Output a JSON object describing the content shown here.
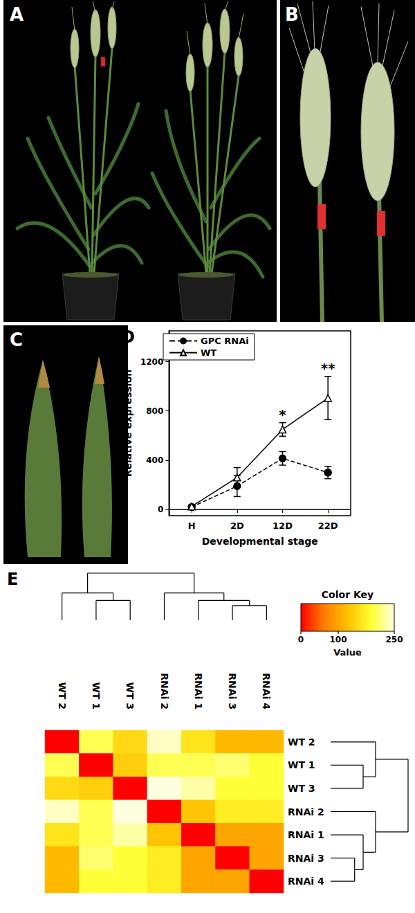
{
  "photos": [
    {
      "label": "A"
    },
    {
      "label": "B"
    },
    {
      "label": "C"
    }
  ],
  "chart_data": [
    {
      "type": "line",
      "title": "D",
      "categories": [
        "H",
        "2D",
        "12D",
        "22D"
      ],
      "x_label": "Developmental stage",
      "y_label": "Relative expression",
      "ylim": [
        -50,
        1450
      ],
      "yticks": [
        0,
        400,
        800,
        1200
      ],
      "legend": "top-left",
      "grid": false,
      "series": [
        {
          "name": "GPC RNAi",
          "color": "#000000",
          "marker": "filled_circle",
          "line_style": "dashed",
          "values": [
            20,
            190,
            415,
            300
          ],
          "errors": [
            10,
            85,
            55,
            50
          ]
        },
        {
          "name": "WT",
          "color": "#000000",
          "marker": "open_triangle",
          "line_style": "solid",
          "values": [
            25,
            260,
            650,
            905
          ],
          "errors": [
            12,
            80,
            55,
            175
          ]
        }
      ],
      "annotations": [
        {
          "category": "12D",
          "text": "*"
        },
        {
          "category": "22D",
          "text": "**"
        }
      ]
    },
    {
      "type": "heatmap",
      "title": "E",
      "columns": [
        "WT 2",
        "WT 1",
        "WT 3",
        "RNAi 2",
        "RNAi 1",
        "RNAi 3",
        "RNAi 4"
      ],
      "rows": [
        "WT 2",
        "WT 1",
        "WT 3",
        "RNAi 2",
        "RNAi 1",
        "RNAi 3",
        "RNAi 4"
      ],
      "cells": [
        [
          0,
          200,
          150,
          240,
          160,
          120,
          120
        ],
        [
          200,
          0,
          140,
          200,
          200,
          210,
          190
        ],
        [
          150,
          140,
          0,
          250,
          230,
          190,
          190
        ],
        [
          240,
          200,
          250,
          0,
          130,
          170,
          170
        ],
        [
          160,
          200,
          230,
          130,
          0,
          100,
          100
        ],
        [
          120,
          210,
          190,
          170,
          100,
          0,
          100
        ],
        [
          120,
          190,
          190,
          170,
          100,
          100,
          0
        ]
      ],
      "color_key_title": "Color Key",
      "color_label": "Value",
      "color_range": [
        0,
        250
      ],
      "color_ticks": [
        0,
        100,
        250
      ],
      "dendrogram": [
        {
          "members": [
            "RNAi 3",
            "RNAi 4"
          ],
          "height": 31
        },
        {
          "members": [
            "WT 1",
            "WT 3"
          ],
          "height": 42
        },
        {
          "members": [
            "RNAi 1",
            "RNAi 3",
            "RNAi 4"
          ],
          "height": 42
        },
        {
          "members": [
            "WT 2",
            "WT 1",
            "WT 3"
          ],
          "height": 58
        },
        {
          "members": [
            "RNAi 2",
            "RNAi 1",
            "RNAi 3",
            "RNAi 4"
          ],
          "height": 58
        },
        {
          "members": [
            "WT 2",
            "WT 1",
            "WT 3",
            "RNAi 2",
            "RNAi 1",
            "RNAi 3",
            "RNAi 4"
          ],
          "height": 100
        }
      ]
    }
  ]
}
